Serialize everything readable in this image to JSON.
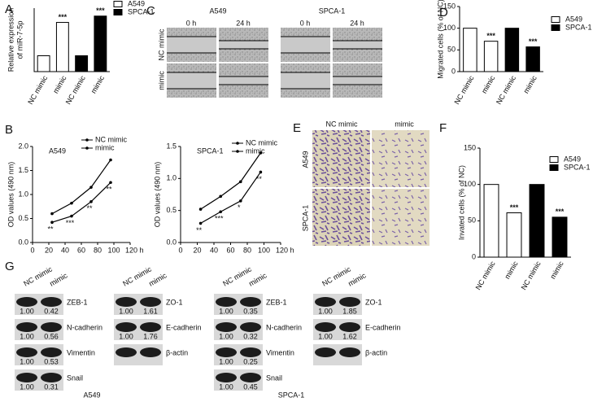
{
  "panels": [
    "A",
    "B",
    "C",
    "D",
    "E",
    "F",
    "G"
  ],
  "chart_data": [
    {
      "type": "bar",
      "y_label": [
        "Relative expression",
        "of miR-7-5p"
      ],
      "categories": [
        "NC mimic",
        "mimic",
        "NC mimic",
        "mimic"
      ],
      "series": [
        {
          "name": "A549",
          "color": "#ffffff",
          "values": [
            1,
            3.1,
            null,
            null
          ]
        },
        {
          "name": "SPCA-1",
          "color": "#000000",
          "values": [
            null,
            null,
            1,
            3.5
          ]
        }
      ],
      "ylim": [
        0,
        4
      ],
      "annotations": [
        "***",
        "***"
      ]
    },
    {
      "type": "line",
      "title": "A549",
      "y_label": [
        "OD values (490 nm)"
      ],
      "x": [
        24,
        48,
        72,
        96
      ],
      "series": [
        {
          "name": "NC mimic",
          "color": "#000000",
          "values": [
            0.6,
            0.82,
            1.15,
            1.72
          ]
        },
        {
          "name": "mimic",
          "color": "#000000",
          "values": [
            0.42,
            0.55,
            0.85,
            1.25
          ]
        }
      ],
      "xlim": [
        0,
        120
      ],
      "xticks": [
        0,
        20,
        40,
        60,
        80,
        100,
        {
          "value": 120,
          "label": "120 h"
        }
      ],
      "ylim": [
        0,
        2
      ],
      "yticks": [
        {
          "value": 0,
          "label": "0.0"
        },
        0.5,
        {
          "value": 1,
          "label": "1.0"
        },
        1.5,
        {
          "value": 2,
          "label": "2.0"
        }
      ],
      "annotations": [
        "**",
        "***",
        "**",
        "**"
      ]
    },
    {
      "type": "line",
      "title": "SPCA-1",
      "y_label": [
        "OD values (490 nm)"
      ],
      "x": [
        24,
        48,
        72,
        96
      ],
      "series": [
        {
          "name": "NC mimic",
          "color": "#000000",
          "values": [
            0.52,
            0.72,
            0.95,
            1.4
          ]
        },
        {
          "name": "mimic",
          "color": "#000000",
          "values": [
            0.3,
            0.48,
            0.65,
            1.1
          ]
        }
      ],
      "xlim": [
        0,
        120
      ],
      "xticks": [
        0,
        20,
        40,
        60,
        80,
        100,
        {
          "value": 120,
          "label": "120 h"
        }
      ],
      "ylim": [
        0,
        1.5
      ],
      "yticks": [
        {
          "value": 0,
          "label": "0.0"
        },
        0.5,
        {
          "value": 1,
          "label": "1.0"
        },
        1.5
      ],
      "annotations": [
        "**",
        "***",
        "*",
        "**"
      ]
    },
    {
      "type": "bar",
      "y_label": [
        "Migrated cells (% of NC)"
      ],
      "categories": [
        "NC mimic",
        "mimic",
        "NC mimic",
        "mimic"
      ],
      "series": [
        {
          "name": "A549",
          "color": "#ffffff",
          "values": [
            100,
            70,
            null,
            null
          ]
        },
        {
          "name": "SPCA-1",
          "color": "#000000",
          "values": [
            null,
            null,
            100,
            57
          ]
        }
      ],
      "ylim": [
        0,
        150
      ],
      "yticks": [
        0,
        50,
        100,
        150
      ],
      "annotations": [
        "***",
        "***"
      ]
    },
    {
      "type": "bar",
      "y_label": [
        "Invated cells (% of NC)"
      ],
      "categories": [
        "NC mimic",
        "mimic",
        "NC mimic",
        "mimic"
      ],
      "series": [
        {
          "name": "A549",
          "color": "#ffffff",
          "values": [
            100,
            61,
            null,
            null
          ]
        },
        {
          "name": "SPCA-1",
          "color": "#000000",
          "values": [
            null,
            null,
            100,
            55
          ]
        }
      ],
      "ylim": [
        0,
        150
      ],
      "yticks": [
        0,
        50,
        100,
        150
      ],
      "annotations": [
        "***",
        "***"
      ]
    }
  ],
  "wound": {
    "groups": [
      "A549",
      "SPCA-1"
    ],
    "times": [
      "0 h",
      "24 h"
    ],
    "rows": [
      "NC mimic",
      "mimic"
    ]
  },
  "invasion": {
    "columns": [
      "NC mimic",
      "mimic"
    ],
    "rows": [
      "A549",
      "SPCA-1"
    ]
  },
  "western_blot": {
    "columns": [
      "NC mimic",
      "mimic"
    ],
    "cell_lines": [
      {
        "name": "A549",
        "blocks": [
          {
            "rows": [
              {
                "label": "ZEB-1",
                "values": [
                  "1.00",
                  "0.42"
                ]
              },
              {
                "label": "N-cadherin",
                "values": [
                  "1.00",
                  "0.56"
                ]
              },
              {
                "label": "Vimentin",
                "values": [
                  "1.00",
                  "0.53"
                ]
              },
              {
                "label": "Snail",
                "values": [
                  "1.00",
                  "0.31"
                ]
              }
            ]
          },
          {
            "rows": [
              {
                "label": "ZO-1",
                "values": [
                  "1.00",
                  "1.61"
                ]
              },
              {
                "label": "E-cadherin",
                "values": [
                  "1.00",
                  "1.76"
                ]
              },
              {
                "label": "β-actin"
              }
            ]
          }
        ]
      },
      {
        "name": "SPCA-1",
        "blocks": [
          {
            "rows": [
              {
                "label": "ZEB-1",
                "values": [
                  "1.00",
                  "0.35"
                ]
              },
              {
                "label": "N-cadherin",
                "values": [
                  "1.00",
                  "0.32"
                ]
              },
              {
                "label": "Vimentin",
                "values": [
                  "1.00",
                  "0.25"
                ]
              },
              {
                "label": "Snail",
                "values": [
                  "1.00",
                  "0.45"
                ]
              }
            ]
          },
          {
            "rows": [
              {
                "label": "ZO-1",
                "values": [
                  "1.00",
                  "1.85"
                ]
              },
              {
                "label": "E-cadherin",
                "values": [
                  "1.00",
                  "1.62"
                ]
              },
              {
                "label": "β-actin"
              }
            ]
          }
        ]
      }
    ]
  }
}
